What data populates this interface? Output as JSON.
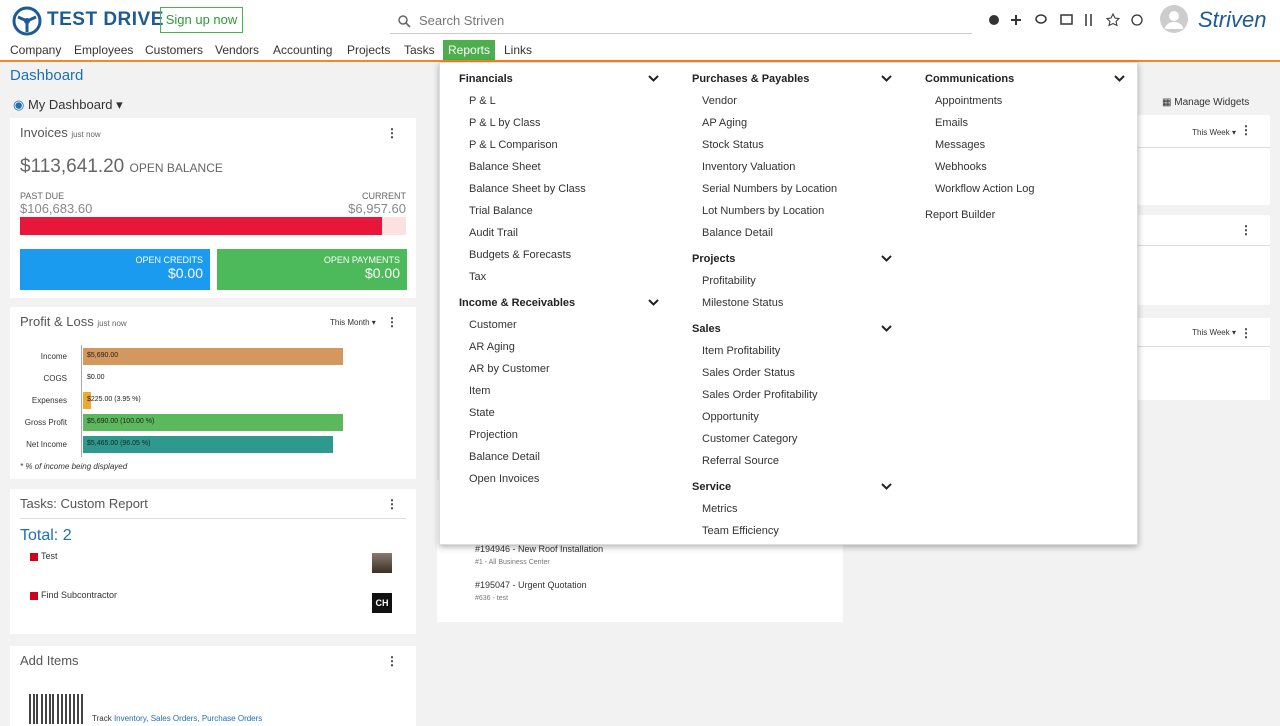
{
  "header": {
    "logo": "TEST DRIVE",
    "signup": "Sign up now",
    "search_placeholder": "Search Striven",
    "brand": "Striven"
  },
  "nav": [
    "Company",
    "Employees",
    "Customers",
    "Vendors",
    "Accounting",
    "Projects",
    "Tasks",
    "Reports",
    "Links"
  ],
  "dashboard": {
    "title": "Dashboard",
    "selector": "My Dashboard",
    "manage": "Manage Widgets"
  },
  "invoices": {
    "title": "Invoices",
    "updated": "just now",
    "balance": "$113,641.20",
    "balance_label": "OPEN BALANCE",
    "past_due_label": "PAST DUE",
    "past_due": "$106,683.60",
    "current_label": "CURRENT",
    "current": "$6,957.60",
    "credits_label": "OPEN CREDITS",
    "credits": "$0.00",
    "payments_label": "OPEN PAYMENTS",
    "payments": "$0.00"
  },
  "profit_loss": {
    "title": "Profit & Loss",
    "updated": "just now",
    "period": "This Month",
    "rows": [
      {
        "label": "Income",
        "value": "$5,690.00"
      },
      {
        "label": "COGS",
        "value": "$0.00"
      },
      {
        "label": "Expenses",
        "value": "$225.00 (3.95 %)"
      },
      {
        "label": "Gross Profit",
        "value": "$5,690.00 (100.00 %)"
      },
      {
        "label": "Net Income",
        "value": "$5,465.00 (96.05 %)"
      }
    ],
    "note": "* % of income being displayed"
  },
  "tasks": {
    "title": "Tasks: Custom Report",
    "total": "Total: 2",
    "items": [
      {
        "name": "Test"
      },
      {
        "name": "Find Subcontractor",
        "avatar": "CH"
      }
    ]
  },
  "add_items": {
    "title": "Add Items",
    "track": "Track",
    "links": "Inventory, Sales Orders, Purchase Orders"
  },
  "middle_list": [
    {
      "title": "#194946 - New Roof Installation",
      "sub": "#1 - All Business Center"
    },
    {
      "title": "#195047 - Urgent Quotation",
      "sub": "#636 - test"
    }
  ],
  "right_widgets": [
    "This Week",
    "This Week"
  ],
  "reports_menu": {
    "columns": [
      {
        "sections": [
          {
            "title": "Financials",
            "items": [
              "P & L",
              "P & L by Class",
              "P & L Comparison",
              "Balance Sheet",
              "Balance Sheet by Class",
              "Trial Balance",
              "Audit Trail",
              "Budgets & Forecasts",
              "Tax"
            ]
          },
          {
            "title": "Income & Receivables",
            "items": [
              "Customer",
              "AR Aging",
              "AR by Customer",
              "Item",
              "State",
              "Projection",
              "Balance Detail",
              "Open Invoices"
            ]
          }
        ]
      },
      {
        "sections": [
          {
            "title": "Purchases & Payables",
            "items": [
              "Vendor",
              "AP Aging",
              "Stock Status",
              "Inventory Valuation",
              "Serial Numbers by Location",
              "Lot Numbers by Location",
              "Balance Detail"
            ]
          },
          {
            "title": "Projects",
            "items": [
              "Profitability",
              "Milestone Status"
            ]
          },
          {
            "title": "Sales",
            "items": [
              "Item Profitability",
              "Sales Order Status",
              "Sales Order Profitability",
              "Opportunity",
              "Customer Category",
              "Referral Source"
            ]
          },
          {
            "title": "Service",
            "items": [
              "Metrics",
              "Team Efficiency"
            ]
          }
        ]
      },
      {
        "sections": [
          {
            "title": "Communications",
            "items": [
              "Appointments",
              "Emails",
              "Messages",
              "Webhooks",
              "Workflow Action Log"
            ]
          }
        ],
        "links": [
          "Report Builder"
        ]
      }
    ]
  }
}
